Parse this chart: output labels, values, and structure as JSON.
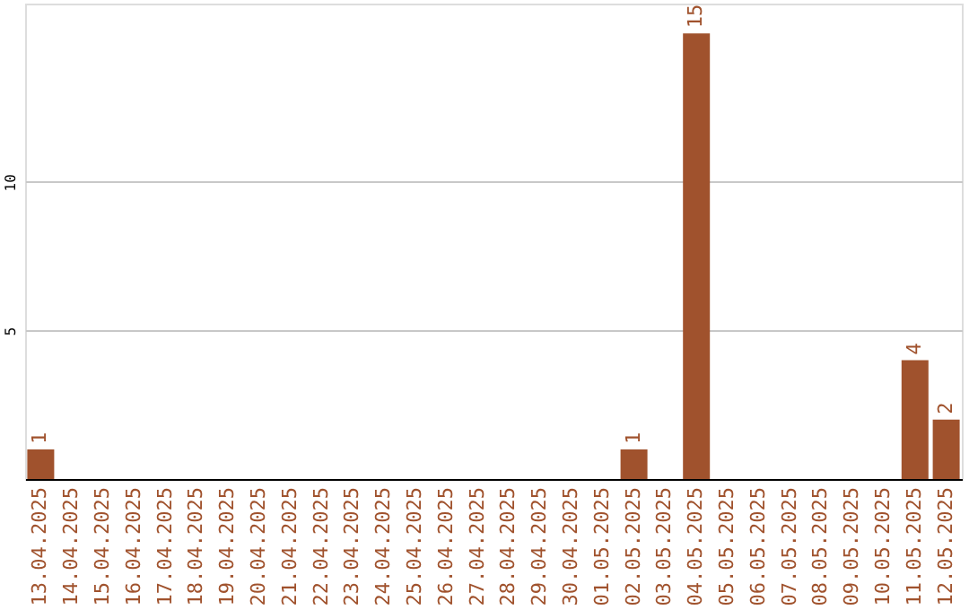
{
  "chart_data": {
    "type": "bar",
    "categories": [
      "13.04.2025",
      "14.04.2025",
      "15.04.2025",
      "16.04.2025",
      "17.04.2025",
      "18.04.2025",
      "19.04.2025",
      "20.04.2025",
      "21.04.2025",
      "22.04.2025",
      "23.04.2025",
      "24.04.2025",
      "25.04.2025",
      "26.04.2025",
      "27.04.2025",
      "28.04.2025",
      "29.04.2025",
      "30.04.2025",
      "01.05.2025",
      "02.05.2025",
      "03.05.2025",
      "04.05.2025",
      "05.05.2025",
      "06.05.2025",
      "07.05.2025",
      "08.05.2025",
      "09.05.2025",
      "10.05.2025",
      "11.05.2025",
      "12.05.2025"
    ],
    "values": [
      1,
      0,
      0,
      0,
      0,
      0,
      0,
      0,
      0,
      0,
      0,
      0,
      0,
      0,
      0,
      0,
      0,
      0,
      0,
      1,
      0,
      15,
      0,
      0,
      0,
      0,
      0,
      0,
      4,
      2
    ],
    "value_labels": [
      "1",
      null,
      null,
      null,
      null,
      null,
      null,
      null,
      null,
      null,
      null,
      null,
      null,
      null,
      null,
      null,
      null,
      null,
      null,
      "1",
      null,
      "15",
      null,
      null,
      null,
      null,
      null,
      null,
      "4",
      "2"
    ],
    "color": "#a0522d",
    "ylim": [
      0,
      16
    ],
    "yticks": [
      5,
      10
    ],
    "grid": "y"
  }
}
